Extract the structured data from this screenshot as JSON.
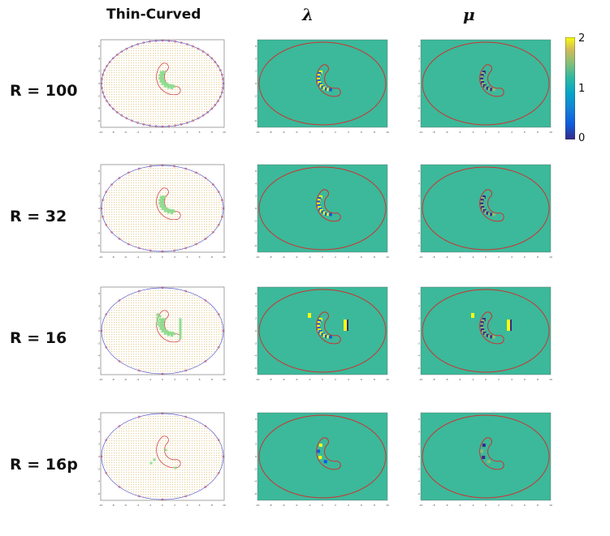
{
  "columns": [
    "Thin-Curved",
    "λ",
    "μ"
  ],
  "rows": [
    {
      "label": "R = 100",
      "boundary_points": 60
    },
    {
      "label": "R = 32",
      "boundary_points": 32
    },
    {
      "label": "R = 16",
      "boundary_points": 16
    },
    {
      "label": "R = 16p",
      "boundary_points": 16
    }
  ],
  "colorbar": {
    "min": "0",
    "mid": "1",
    "max": "2",
    "colormap": "parula"
  },
  "colors": {
    "background_map": "#3bb99a",
    "ellipse": "#cc3333",
    "grid_point": "#e7d09a",
    "inclusion_point": "#8fdc8f",
    "boundary_marker": "#5555cc"
  },
  "axis": {
    "x_ticks": [
      "-10",
      "-8",
      "-6",
      "-4",
      "-2",
      "0",
      "2",
      "4",
      "6",
      "8",
      "10"
    ],
    "y_ticks": [
      "6",
      "4",
      "2",
      "0",
      "-2",
      "-4",
      "-6"
    ]
  }
}
